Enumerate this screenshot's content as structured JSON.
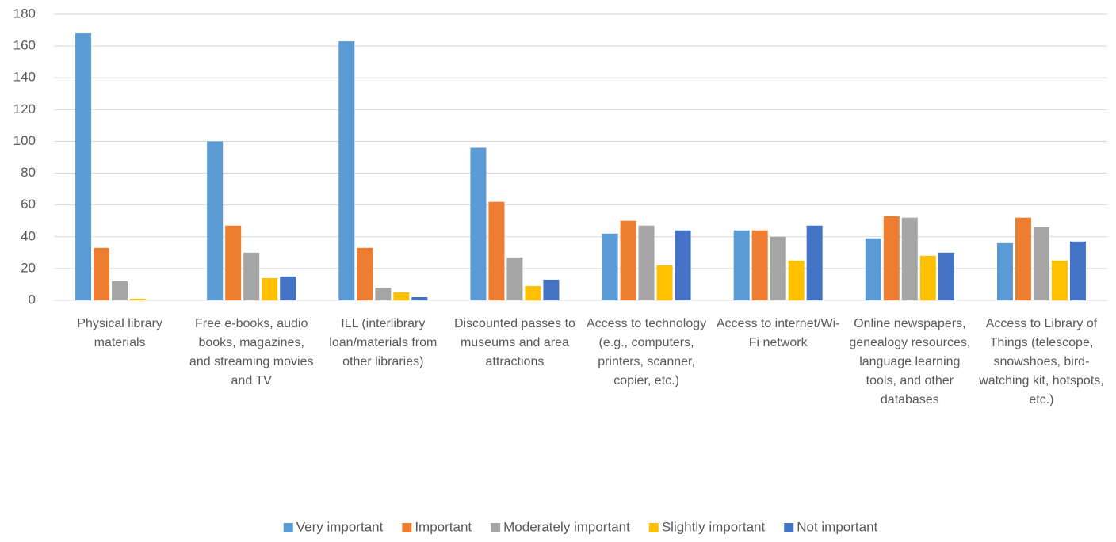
{
  "chart_data": {
    "type": "bar",
    "categories": [
      "Physical library materials",
      "Free e-books, audio books, magazines, and streaming movies and TV",
      "ILL (interlibrary loan/materials from other libraries)",
      "Discounted passes to museums and area attractions",
      "Access to technology (e.g., computers, printers, scanner, copier, etc.)",
      "Access to internet/Wi-Fi network",
      "Online newspapers, genealogy resources, language learning tools, and other databases",
      "Access to Library of Things (telescope, snowshoes, bird-watching kit, hotspots, etc.)"
    ],
    "series": [
      {
        "name": "Very important",
        "color": "#5b9bd5",
        "values": [
          168,
          100,
          163,
          96,
          42,
          44,
          39,
          36
        ]
      },
      {
        "name": "Important",
        "color": "#ed7d31",
        "values": [
          33,
          47,
          33,
          62,
          50,
          44,
          53,
          52
        ]
      },
      {
        "name": "Moderately important",
        "color": "#a5a5a5",
        "values": [
          12,
          30,
          8,
          27,
          47,
          40,
          52,
          46
        ]
      },
      {
        "name": "Slightly important",
        "color": "#ffc000",
        "values": [
          1,
          14,
          5,
          9,
          22,
          25,
          28,
          25
        ]
      },
      {
        "name": "Not important",
        "color": "#4472c4",
        "values": [
          0,
          15,
          2,
          13,
          44,
          47,
          30,
          37
        ]
      }
    ],
    "ylim": [
      0,
      180
    ],
    "yticks": [
      0,
      20,
      40,
      60,
      80,
      100,
      120,
      140,
      160,
      180
    ],
    "grid": true,
    "legend": "bottom"
  }
}
